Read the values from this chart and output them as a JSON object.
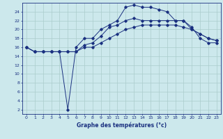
{
  "title": "Graphe des températures (°c)",
  "bg_color": "#cce8ec",
  "grid_color": "#aacccc",
  "line_color": "#1a3080",
  "xlim": [
    -0.5,
    23.5
  ],
  "ylim": [
    1,
    26
  ],
  "yticks": [
    2,
    4,
    6,
    8,
    10,
    12,
    14,
    16,
    18,
    20,
    22,
    24
  ],
  "xticks": [
    0,
    1,
    2,
    3,
    4,
    5,
    6,
    7,
    8,
    9,
    10,
    11,
    12,
    13,
    14,
    15,
    16,
    17,
    18,
    19,
    20,
    21,
    22,
    23
  ],
  "series1_x": [
    0,
    1,
    2,
    3,
    4,
    5,
    6,
    7,
    8,
    9,
    10,
    11,
    12,
    13,
    14,
    15,
    16,
    17,
    18,
    19,
    20,
    21,
    22,
    23
  ],
  "series1_y": [
    16,
    15,
    15,
    15,
    15,
    2,
    16,
    18,
    18,
    20,
    21,
    22,
    25,
    25.5,
    25,
    25,
    24.5,
    24,
    22,
    22,
    20,
    19,
    18,
    17.5
  ],
  "series2_x": [
    0,
    1,
    2,
    3,
    4,
    5,
    6,
    7,
    8,
    9,
    10,
    11,
    12,
    13,
    14,
    15,
    16,
    17,
    18,
    19,
    20,
    21,
    22,
    23
  ],
  "series2_y": [
    16,
    15,
    15,
    15,
    15,
    15,
    15,
    16,
    16,
    17,
    18,
    19,
    20,
    20.5,
    21,
    21,
    21,
    21,
    21,
    20.5,
    20,
    19,
    18,
    17.5
  ],
  "series3_x": [
    0,
    1,
    2,
    3,
    4,
    5,
    6,
    7,
    8,
    9,
    10,
    11,
    12,
    13,
    14,
    15,
    16,
    17,
    18,
    19,
    20,
    21,
    22,
    23
  ],
  "series3_y": [
    16,
    15,
    15,
    15,
    15,
    15,
    15,
    16.5,
    17,
    18.5,
    20.5,
    21,
    22,
    22.5,
    22,
    22,
    22,
    22,
    22,
    22,
    20.5,
    18,
    17,
    17
  ]
}
